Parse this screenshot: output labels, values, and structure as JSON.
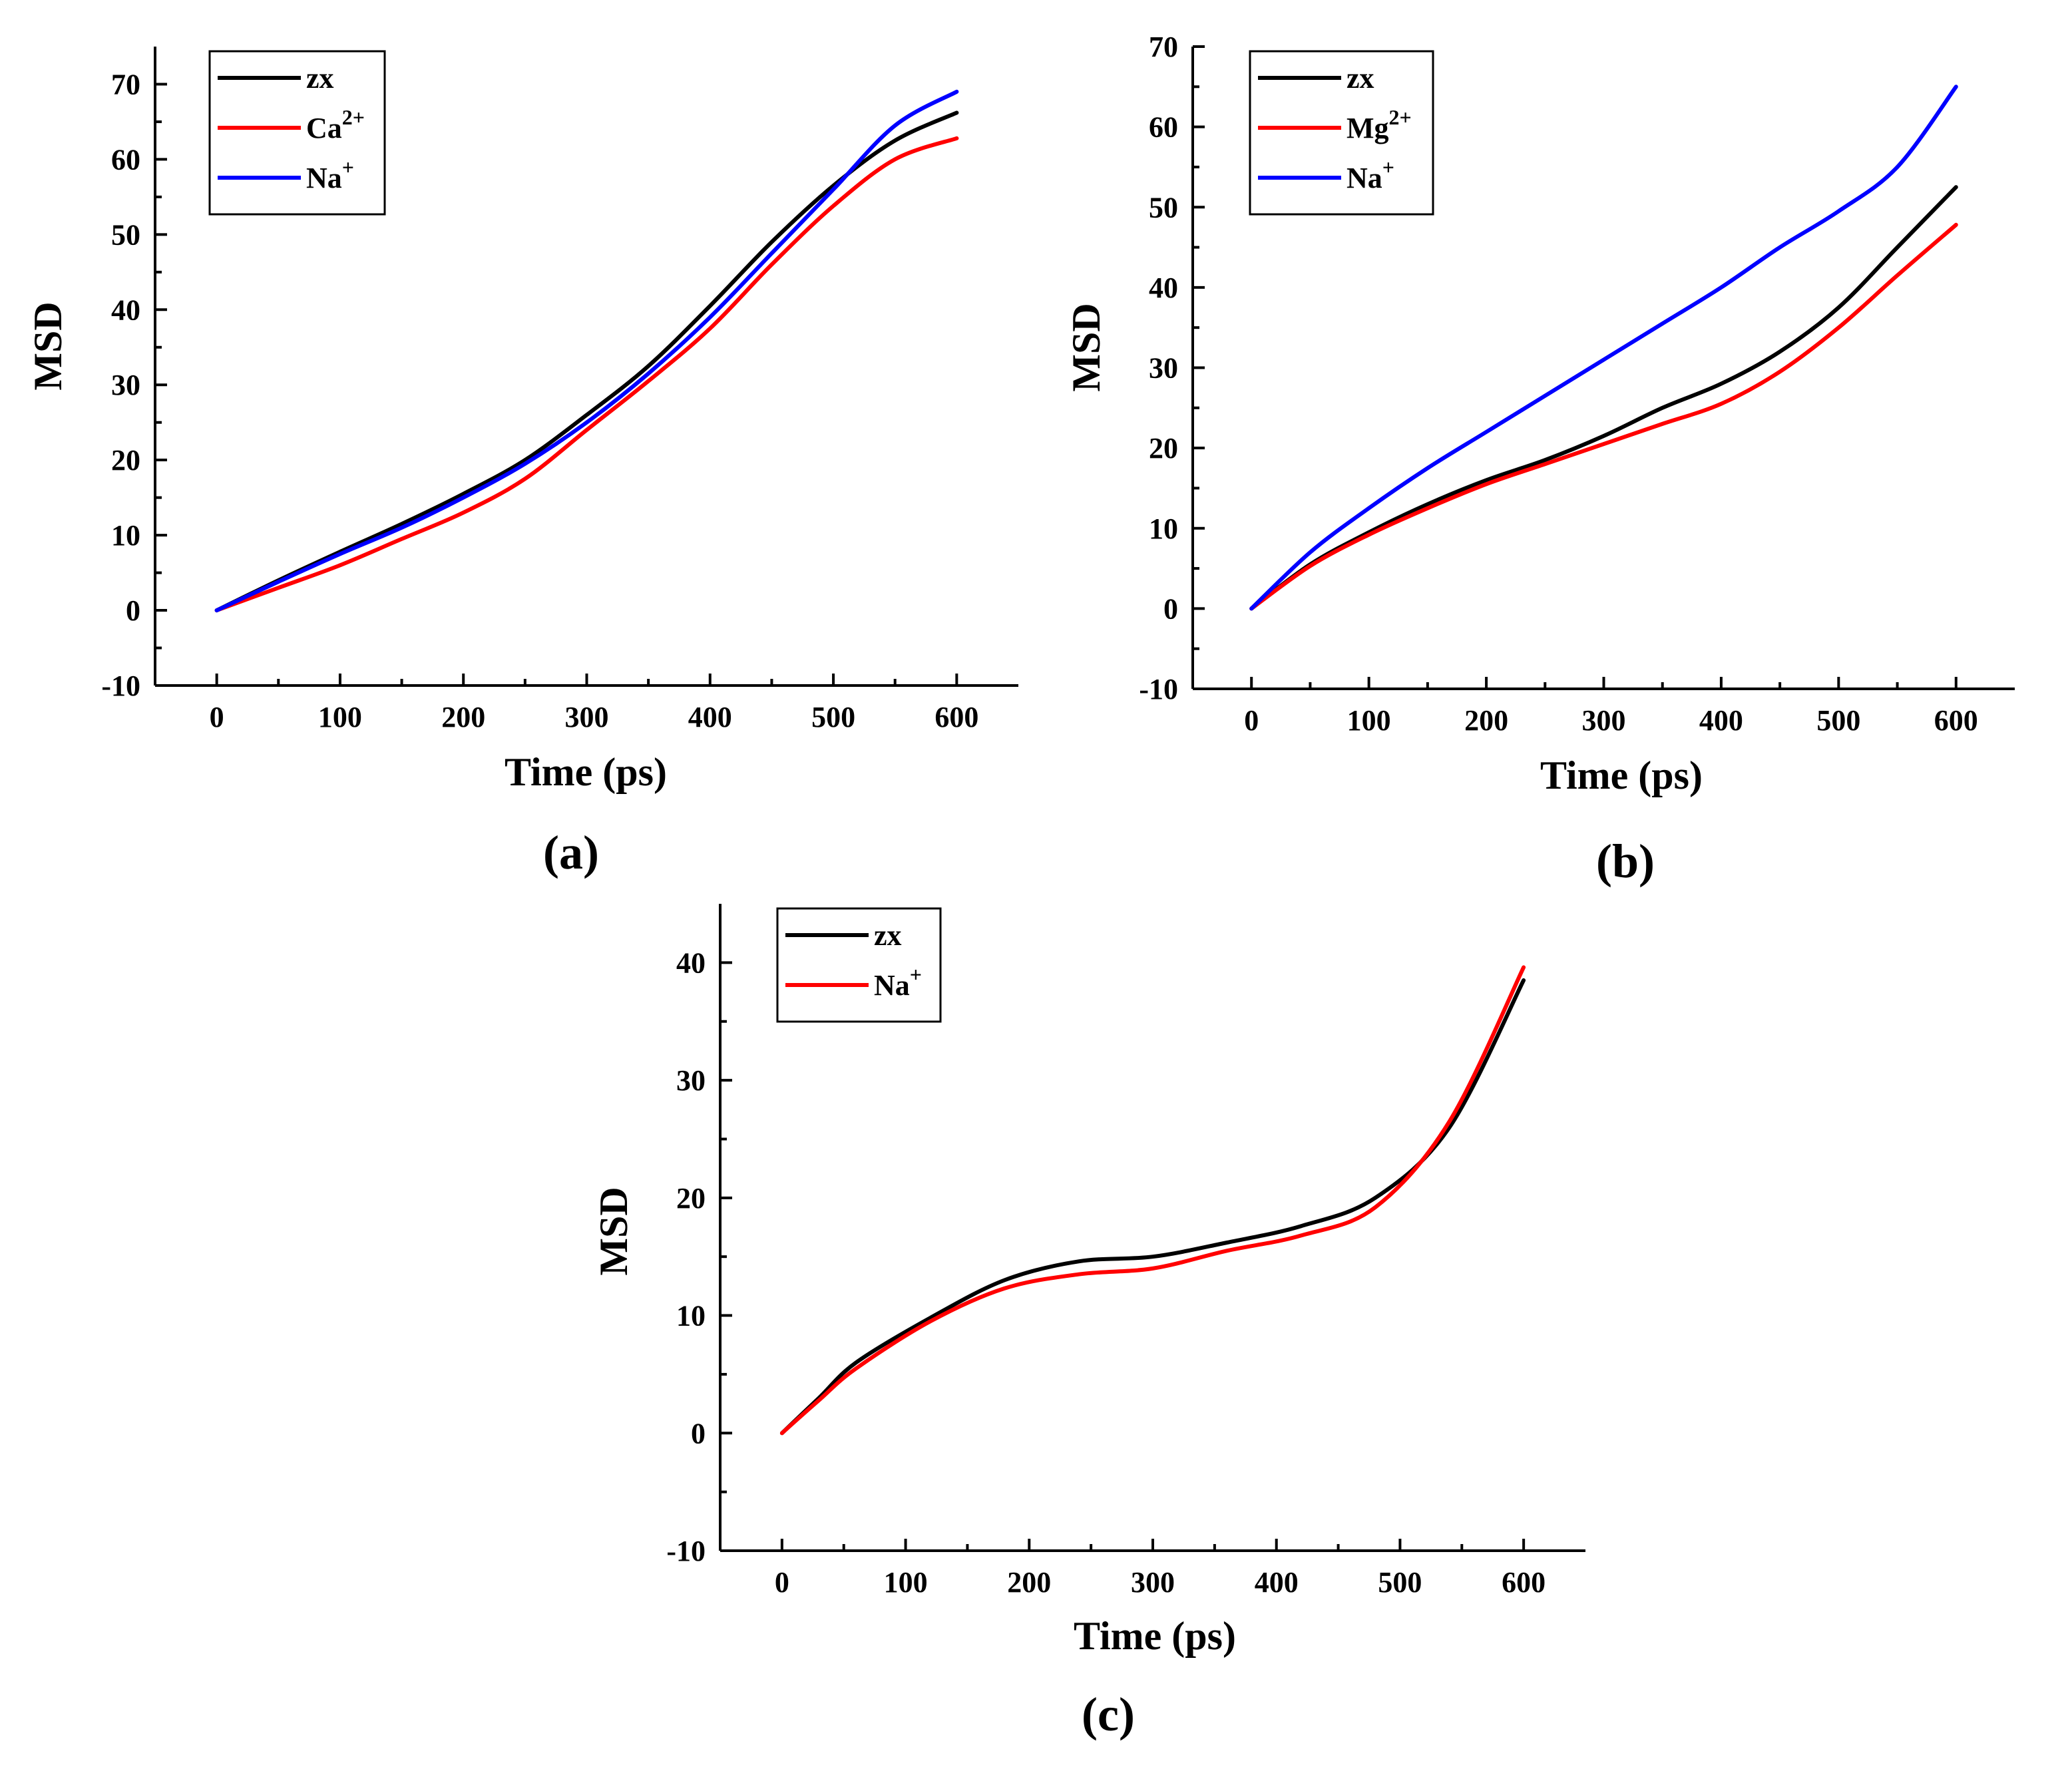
{
  "figure": {
    "panel_labels": [
      "(a)",
      "(b)",
      "(c)"
    ]
  },
  "chart_data": [
    {
      "id": "a",
      "type": "line",
      "title": "",
      "panel_label": "(a)",
      "xlabel": "Time (ps)",
      "ylabel": "MSD",
      "xlim": [
        -50,
        650
      ],
      "ylim": [
        -10,
        75
      ],
      "xticks": [
        0,
        100,
        200,
        300,
        400,
        500,
        600
      ],
      "yticks": [
        -10,
        0,
        10,
        20,
        30,
        40,
        50,
        60,
        70
      ],
      "legend_position": "top-left",
      "series": [
        {
          "name": "zx",
          "label": "zx",
          "sup": "",
          "color": "#000000",
          "x": [
            0,
            50,
            100,
            150,
            200,
            250,
            300,
            350,
            400,
            450,
            500,
            550,
            600
          ],
          "y": [
            0,
            4,
            7.8,
            11.5,
            15.5,
            20,
            26,
            32.5,
            40.5,
            49,
            56.5,
            62.5,
            66.2
          ]
        },
        {
          "name": "Ca2+",
          "label": "Ca",
          "sup": "2+",
          "color": "#ff0000",
          "x": [
            0,
            50,
            100,
            150,
            200,
            250,
            300,
            350,
            400,
            450,
            500,
            550,
            600
          ],
          "y": [
            0,
            3,
            6,
            9.5,
            13,
            17.5,
            24,
            30.5,
            37.5,
            46,
            53.8,
            60,
            62.8
          ]
        },
        {
          "name": "Na+",
          "label": "Na",
          "sup": "+",
          "color": "#0000ff",
          "x": [
            0,
            50,
            100,
            150,
            200,
            250,
            300,
            350,
            400,
            450,
            500,
            550,
            600
          ],
          "y": [
            0,
            3.8,
            7.5,
            11,
            15,
            19.5,
            25,
            31.5,
            39,
            47.5,
            56,
            64.5,
            69
          ]
        }
      ]
    },
    {
      "id": "b",
      "type": "line",
      "title": "",
      "panel_label": "(b)",
      "xlabel": "Time (ps)",
      "ylabel": "MSD",
      "xlim": [
        -50,
        650
      ],
      "ylim": [
        -10,
        70
      ],
      "xticks": [
        0,
        100,
        200,
        300,
        400,
        500,
        600
      ],
      "yticks": [
        -10,
        0,
        10,
        20,
        30,
        40,
        50,
        60,
        70
      ],
      "legend_position": "top-left",
      "series": [
        {
          "name": "zx",
          "label": "zx",
          "sup": "",
          "color": "#000000",
          "x": [
            0,
            50,
            100,
            150,
            200,
            250,
            300,
            350,
            400,
            450,
            500,
            550,
            600
          ],
          "y": [
            0,
            5.5,
            9.5,
            13,
            16,
            18.5,
            21.5,
            25,
            28,
            32,
            37.5,
            45,
            52.5
          ]
        },
        {
          "name": "Mg2+",
          "label": "Mg",
          "sup": "2+",
          "color": "#ff0000",
          "x": [
            0,
            50,
            100,
            150,
            200,
            250,
            300,
            350,
            400,
            450,
            500,
            550,
            600
          ],
          "y": [
            0,
            5.3,
            9.2,
            12.5,
            15.5,
            18,
            20.5,
            23,
            25.5,
            29.5,
            35,
            41.5,
            47.8
          ]
        },
        {
          "name": "Na+",
          "label": "Na",
          "sup": "+",
          "color": "#0000ff",
          "x": [
            0,
            50,
            100,
            150,
            200,
            250,
            300,
            350,
            400,
            450,
            500,
            550,
            600
          ],
          "y": [
            0,
            7,
            12.5,
            17.5,
            22,
            26.5,
            31,
            35.5,
            40,
            45,
            49.5,
            55,
            65
          ]
        }
      ]
    },
    {
      "id": "c",
      "type": "line",
      "title": "",
      "panel_label": "(c)",
      "xlabel": "Time (ps)",
      "ylabel": "MSD",
      "xlim": [
        -50,
        650
      ],
      "ylim": [
        -10,
        45
      ],
      "xticks": [
        0,
        100,
        200,
        300,
        400,
        500,
        600
      ],
      "yticks": [
        -10,
        0,
        10,
        20,
        30,
        40
      ],
      "legend_position": "top-left",
      "series": [
        {
          "name": "zx",
          "label": "zx",
          "sup": "",
          "color": "#000000",
          "x": [
            0,
            30,
            60,
            120,
            180,
            240,
            300,
            360,
            420,
            480,
            540,
            600
          ],
          "y": [
            0,
            3,
            6,
            9.8,
            13,
            14.6,
            15,
            16.2,
            17.6,
            20,
            26,
            38.5
          ]
        },
        {
          "name": "Na+",
          "label": "Na",
          "sup": "+",
          "color": "#ff0000",
          "x": [
            0,
            30,
            60,
            120,
            180,
            240,
            300,
            360,
            420,
            480,
            540,
            600
          ],
          "y": [
            0,
            2.8,
            5.5,
            9.5,
            12.3,
            13.5,
            14,
            15.5,
            16.8,
            19.2,
            26.5,
            39.6
          ]
        }
      ]
    }
  ]
}
